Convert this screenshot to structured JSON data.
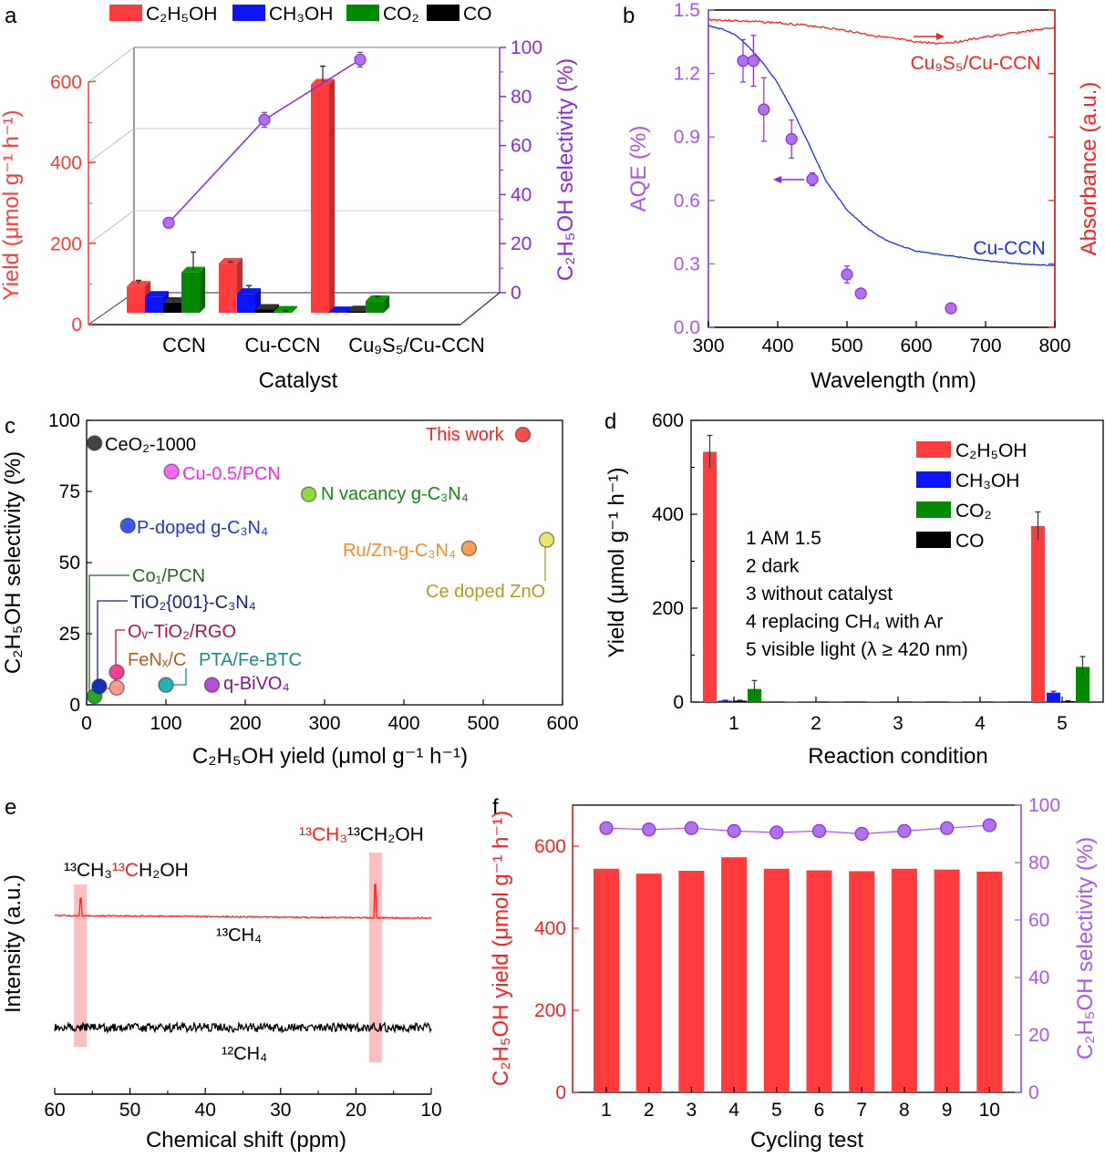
{
  "panels": {
    "a": {
      "letter": "a",
      "legend": [
        "C₂H₅OH",
        "CH₃OH",
        "CO₂",
        "CO"
      ],
      "ylabel": "Yield (μmol g⁻¹ h⁻¹)",
      "y2label": "C₂H₅OH selectivity (%)",
      "xlabel": "Catalyst"
    },
    "b": {
      "letter": "b",
      "ylabel": "AQE (%)",
      "y2label": "Absorbance (a.u.)",
      "xlabel": "Wavelength (nm)",
      "curve_labels": [
        "Cu₉S₅/Cu-CCN",
        "Cu-CCN"
      ]
    },
    "c": {
      "letter": "c",
      "ylabel": "C₂H₅OH selectivity (%)",
      "xlabel": "C₂H₅OH yield (μmol g⁻¹ h⁻¹)"
    },
    "d": {
      "letter": "d",
      "ylabel": "Yield (μmol g⁻¹ h⁻¹)",
      "xlabel": "Reaction condition",
      "conditions": [
        "1 AM 1.5",
        "2 dark",
        "3 without catalyst",
        "4 replacing CH₄ with Ar",
        "5 visible light (λ ≥ 420 nm)"
      ]
    },
    "e": {
      "letter": "e",
      "ylabel": "Intensity (a.u.)",
      "xlabel": "Chemical shift (ppm)",
      "label_13ch4": "¹³CH₄",
      "label_12ch4": "¹²CH₄",
      "left_peak_label": [
        {
          "t": "¹³CH₃",
          "c": "#000000"
        },
        {
          "t": "¹³C",
          "c": "#ff2020"
        },
        {
          "t": "H₂OH",
          "c": "#000000"
        }
      ],
      "right_peak_label": [
        {
          "t": "¹³CH₃",
          "c": "#ff2020"
        },
        {
          "t": "¹³CH₂OH",
          "c": "#000000"
        }
      ]
    },
    "f": {
      "letter": "f",
      "ylabel": "C₂H₅OH yield (μmol g⁻¹ h⁻¹)",
      "y2label": "C₂H₅OH selectivity (%)",
      "xlabel": "Cycling test"
    }
  },
  "chart_data": [
    {
      "panel": "a",
      "type": "bar",
      "categories": [
        "CCN",
        "Cu-CCN",
        "Cu₉S₅/Cu-CCN"
      ],
      "series": [
        {
          "name": "C₂H₅OH",
          "color": "#ff3b3b",
          "values": [
            65,
            122,
            565
          ],
          "errors": [
            15,
            3,
            45
          ]
        },
        {
          "name": "CH₃OH",
          "color": "#0a14ff",
          "values": [
            40,
            47,
            2
          ],
          "errors": [
            3,
            20,
            1
          ]
        },
        {
          "name": "CO₂",
          "color": "#008a00",
          "values": [
            100,
            3,
            29
          ],
          "errors": [
            50,
            1,
            12
          ]
        },
        {
          "name": "CO",
          "color": "#000000",
          "values": [
            25,
            8,
            4
          ],
          "errors": [
            2,
            2,
            2
          ]
        }
      ],
      "line_series": {
        "name": "C₂H₅OH selectivity (%)",
        "color": "#8a2be2",
        "values": [
          28.5,
          70.5,
          95
        ],
        "errors": [
          2,
          3,
          3
        ]
      },
      "ylim": [
        0,
        600
      ],
      "yticks": [
        0,
        200,
        400,
        600
      ],
      "y2lim": [
        0,
        100
      ],
      "y2ticks": [
        0,
        20,
        40,
        60,
        80,
        100
      ],
      "yticklabels": [
        "0",
        "200",
        "400",
        "600"
      ],
      "y2ticklabels": [
        "0",
        "20",
        "40",
        "60",
        "80",
        "100"
      ],
      "grid": true,
      "legend": "top",
      "style": "3d"
    },
    {
      "panel": "b",
      "type": "scatter+line",
      "xlim": [
        300,
        800
      ],
      "xticks": [
        "300",
        "400",
        "500",
        "600",
        "700",
        "800"
      ],
      "ylim": [
        0,
        1.5
      ],
      "yticks": [
        "0.0",
        "0.3",
        "0.6",
        "0.9",
        "1.2",
        "1.5"
      ],
      "aqe": {
        "color": "#a855f7",
        "x": [
          350,
          365,
          380,
          420,
          450,
          500,
          520,
          650
        ],
        "y": [
          1.26,
          1.26,
          1.03,
          0.89,
          0.7,
          0.25,
          0.16,
          0.09
        ],
        "errors": [
          0.1,
          0.12,
          0.15,
          0.09,
          0.03,
          0.04,
          0.01,
          0.02
        ]
      },
      "absorbance": [
        {
          "name": "Cu₉S₅/Cu-CCN",
          "color": "#ff2020",
          "x": [
            300,
            350,
            400,
            450,
            500,
            550,
            600,
            630,
            660,
            700,
            750,
            800
          ],
          "y": [
            0.97,
            0.965,
            0.96,
            0.95,
            0.935,
            0.915,
            0.9,
            0.895,
            0.9,
            0.915,
            0.93,
            0.945
          ]
        },
        {
          "name": "Cu-CCN",
          "color": "#1a2bff",
          "x": [
            300,
            320,
            340,
            360,
            380,
            400,
            420,
            440,
            470,
            500,
            530,
            560,
            600,
            650,
            700,
            750,
            800
          ],
          "y": [
            0.95,
            0.94,
            0.92,
            0.88,
            0.83,
            0.77,
            0.69,
            0.6,
            0.46,
            0.37,
            0.31,
            0.27,
            0.24,
            0.225,
            0.21,
            0.2,
            0.195
          ]
        }
      ],
      "y2lim": [
        0,
        1
      ],
      "grid": false
    },
    {
      "panel": "c",
      "type": "scatter",
      "xlim": [
        0,
        600
      ],
      "xticks": [
        "0",
        "100",
        "200",
        "300",
        "400",
        "500",
        "600"
      ],
      "ylim": [
        0,
        100
      ],
      "yticks": [
        "0",
        "25",
        "50",
        "75",
        "100"
      ],
      "points": [
        {
          "name": "This work",
          "x": 550,
          "y": 95,
          "color": "#ff4d4d",
          "text_color": "#ff2020"
        },
        {
          "name": "CeO₂-1000",
          "x": 10,
          "y": 92,
          "color": "#444444",
          "text_color": "#000000"
        },
        {
          "name": "Cu-0.5/PCN",
          "x": 107,
          "y": 82,
          "color": "#ff66ff",
          "text_color": "#ff22ff"
        },
        {
          "name": "N vacancy g-C₃N₄",
          "x": 280,
          "y": 74,
          "color": "#8fdc3a",
          "text_color": "#118811"
        },
        {
          "name": "P-doped g-C₃N₄",
          "x": 52,
          "y": 63,
          "color": "#3b55ff",
          "text_color": "#2233dd"
        },
        {
          "name": "Ru/Zn-g-C₃N₄",
          "x": 482,
          "y": 55,
          "color": "#ff9e4d",
          "text_color": "#ff8822"
        },
        {
          "name": "Ce doped ZnO",
          "x": 580,
          "y": 58,
          "color": "#ece66a",
          "text_color": "#aaa020"
        },
        {
          "name": "Co₁/PCN",
          "x": 10,
          "y": 3,
          "color": "#22aa22",
          "text_color": "#226622"
        },
        {
          "name": "TiO₂{001}-C₃N₄",
          "x": 16,
          "y": 6.5,
          "color": "#1133bb",
          "text_color": "#1a237e"
        },
        {
          "name": "Oᵥ-TiO₂/RGO",
          "x": 38,
          "y": 11.5,
          "color": "#ff3d99",
          "text_color": "#aa1155"
        },
        {
          "name": "FeNₓ/C",
          "x": 38,
          "y": 6,
          "color": "#ff9a8a",
          "text_color": "#b85c1a"
        },
        {
          "name": "PTA/Fe-BTC",
          "x": 100,
          "y": 7,
          "color": "#22b5b5",
          "text_color": "#1a8a8a"
        },
        {
          "name": "q-BiVO₄",
          "x": 158,
          "y": 7,
          "color": "#b94dd9",
          "text_color": "#7a1a8a"
        }
      ],
      "grid": false
    },
    {
      "panel": "d",
      "type": "bar",
      "categories": [
        "1",
        "2",
        "3",
        "4",
        "5"
      ],
      "series": [
        {
          "name": "C₂H₅OH",
          "color": "#ff3b3b",
          "values": [
            533,
            1,
            1,
            1,
            375
          ],
          "errors": [
            35,
            0,
            0,
            0,
            30
          ]
        },
        {
          "name": "CH₃OH",
          "color": "#0a14ff",
          "values": [
            3,
            1,
            1,
            1,
            20
          ],
          "errors": [
            1,
            0,
            0,
            0,
            3
          ]
        },
        {
          "name": "CO₂",
          "color": "#008a00",
          "values": [
            28,
            1,
            1,
            1,
            75
          ],
          "errors": [
            18,
            0,
            0,
            0,
            22
          ]
        },
        {
          "name": "CO",
          "color": "#000000",
          "values": [
            3,
            1,
            1,
            1,
            2
          ],
          "errors": [
            1,
            0,
            0,
            0,
            1
          ]
        }
      ],
      "ylim": [
        0,
        600
      ],
      "yticks": [
        "0",
        "200",
        "400",
        "600"
      ],
      "legend": "top-right",
      "grid": false
    },
    {
      "panel": "e",
      "type": "line",
      "xlim": [
        60,
        10
      ],
      "xticks": [
        "60",
        "50",
        "40",
        "30",
        "20",
        "10"
      ],
      "series": [
        {
          "name": "¹³CH₄",
          "color": "#ff2020",
          "peaks_ppm": [
            56.6,
            17.4
          ]
        },
        {
          "name": "¹²CH₄",
          "color": "#000000",
          "peaks_ppm": []
        }
      ],
      "highlight_ppm": [
        56.6,
        17.4
      ],
      "highlight_color": "#ffb3b3"
    },
    {
      "panel": "f",
      "type": "bar+line",
      "categories": [
        "1",
        "2",
        "3",
        "4",
        "5",
        "6",
        "7",
        "8",
        "9",
        "10"
      ],
      "bars": {
        "name": "C₂H₅OH yield",
        "color": "#ff3b3b",
        "values": [
          545,
          533,
          540,
          573,
          545,
          541,
          539,
          545,
          543,
          538
        ]
      },
      "line": {
        "name": "C₂H₅OH selectivity",
        "color": "#a855f7",
        "values": [
          92,
          91.5,
          92,
          91,
          90.5,
          91,
          90,
          91,
          92,
          93
        ]
      },
      "ylim": [
        0,
        700
      ],
      "yticks": [
        "0",
        "200",
        "400",
        "600"
      ],
      "y2lim": [
        0,
        100
      ],
      "y2ticks": [
        "0",
        "20",
        "40",
        "60",
        "80",
        "100"
      ]
    }
  ]
}
